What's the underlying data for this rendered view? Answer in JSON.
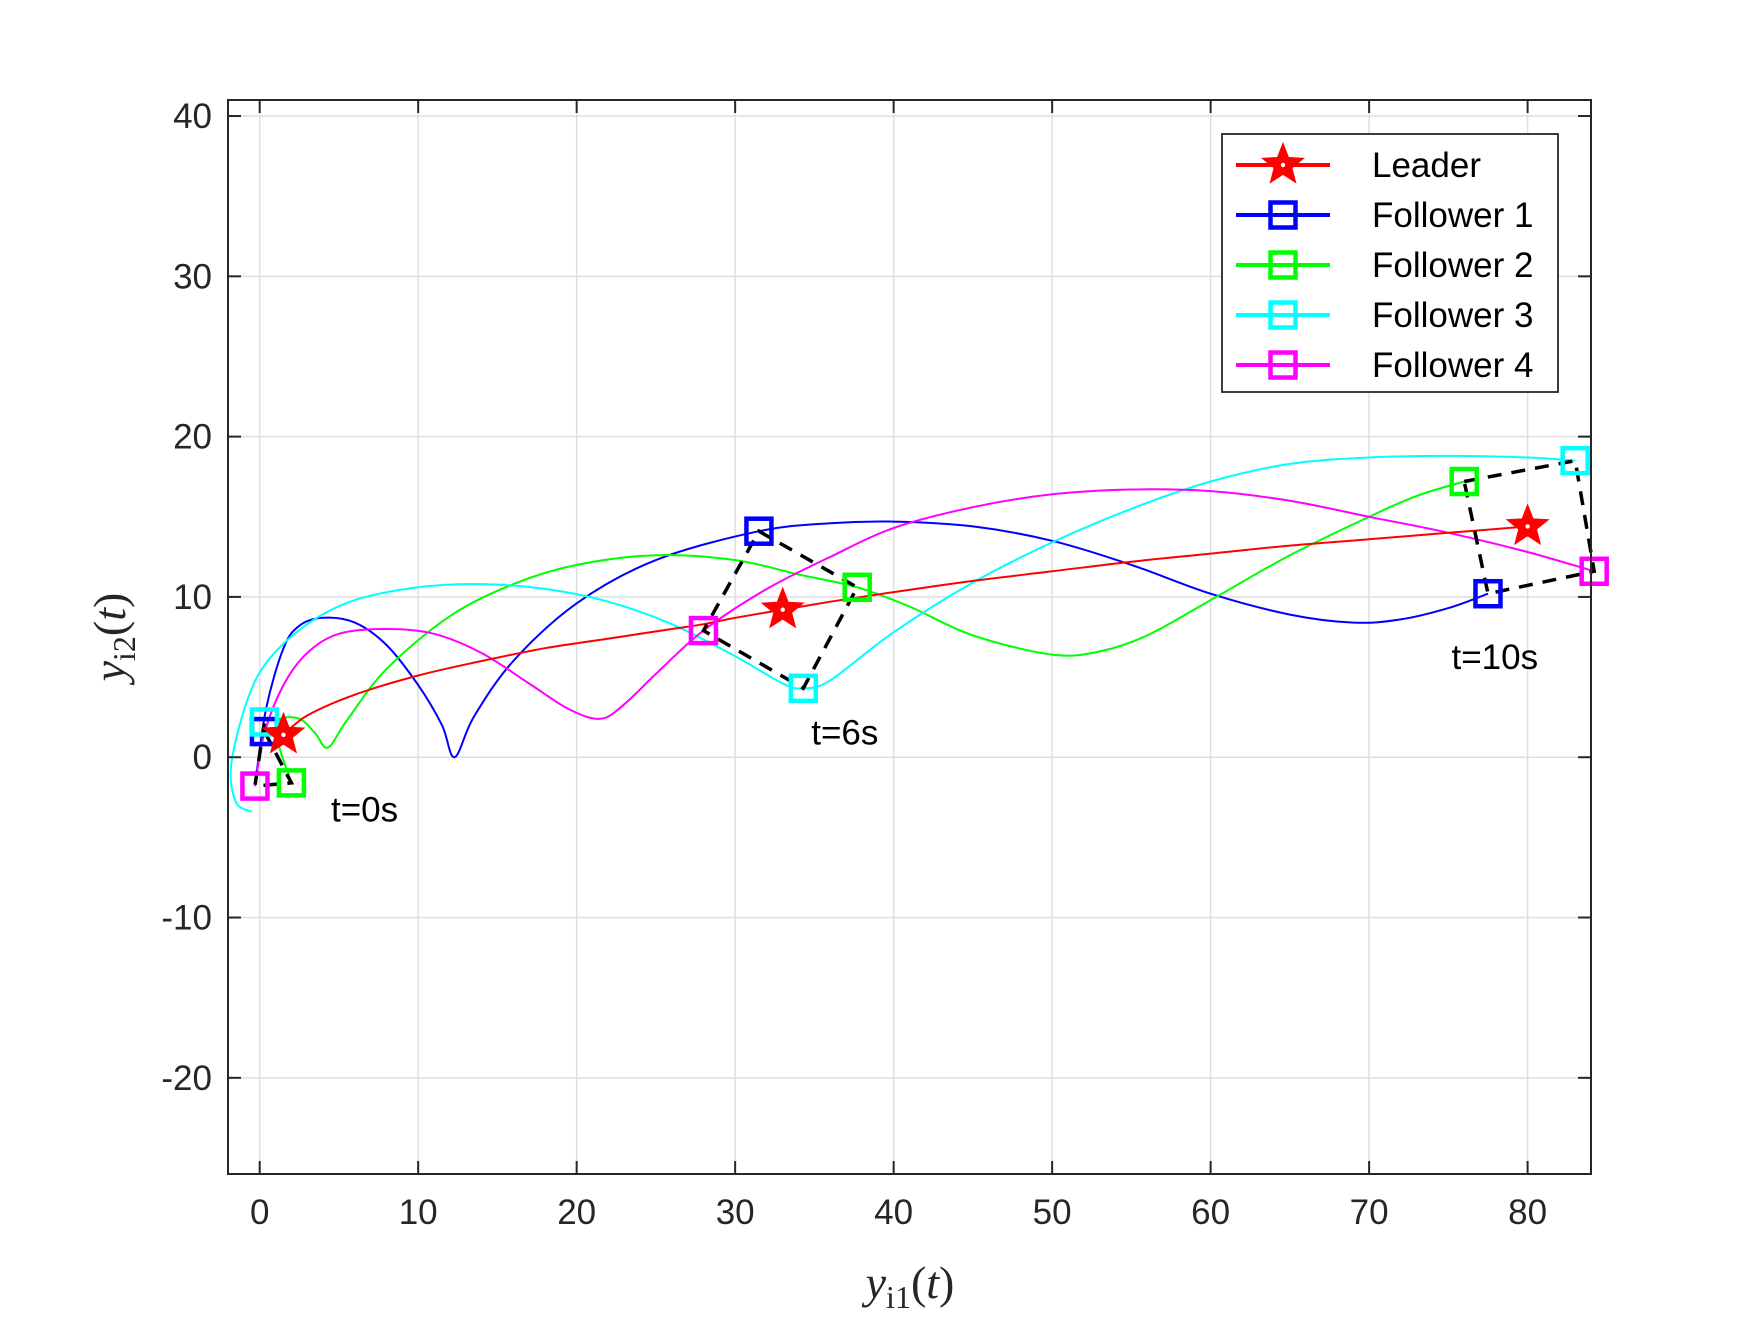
{
  "chart_data": {
    "type": "line",
    "xlabel": "y_{i1}(t)",
    "ylabel": "y_{i2}(t)",
    "xlim": [
      -2,
      84
    ],
    "ylim": [
      -26,
      41
    ],
    "grid": true,
    "xticks": [
      0,
      10,
      20,
      30,
      40,
      50,
      60,
      70,
      80
    ],
    "yticks": [
      -20,
      -10,
      0,
      10,
      20,
      30,
      40
    ],
    "xtick_labels": [
      "0",
      "10",
      "20",
      "30",
      "40",
      "50",
      "60",
      "70",
      "80"
    ],
    "ytick_labels": [
      "-20",
      "-10",
      "0",
      "10",
      "20",
      "30",
      "40"
    ],
    "legend_position": "top-right",
    "series": [
      {
        "name": "Leader",
        "color": "#ff0000",
        "marker": "star",
        "x": [
          1.5,
          3,
          6,
          10,
          14,
          18,
          22,
          26,
          28,
          30,
          33,
          36,
          40,
          45,
          50,
          55,
          60,
          65,
          70,
          75,
          80
        ],
        "y": [
          1.4,
          2.6,
          3.9,
          5.1,
          6.0,
          6.8,
          7.4,
          8.0,
          8.3,
          8.7,
          9.2,
          9.7,
          10.3,
          11.0,
          11.6,
          12.2,
          12.7,
          13.2,
          13.6,
          14.0,
          14.4
        ],
        "markers": [
          [
            1.5,
            1.4
          ],
          [
            33,
            9.2
          ],
          [
            80,
            14.4
          ]
        ]
      },
      {
        "name": "Follower 1",
        "color": "#0000ff",
        "marker": "square",
        "x": [
          -0.3,
          0.4,
          1.5,
          2.5,
          4,
          6,
          8,
          10,
          11.5,
          12.3,
          13.5,
          16,
          20,
          25,
          31.5,
          36,
          40,
          45,
          50,
          55,
          60,
          65,
          69,
          72,
          75,
          77.5
        ],
        "y": [
          -1.8,
          3,
          6.8,
          8.2,
          8.7,
          8.4,
          7,
          4.5,
          2,
          0,
          2.5,
          6,
          9.6,
          12.3,
          14.1,
          14.6,
          14.7,
          14.4,
          13.5,
          12,
          10.2,
          8.9,
          8.4,
          8.6,
          9.3,
          10.2
        ],
        "markers": [
          [
            0.3,
            1.6
          ],
          [
            31.5,
            14.1
          ],
          [
            77.5,
            10.2
          ]
        ]
      },
      {
        "name": "Follower 2",
        "color": "#00ff00",
        "marker": "square",
        "x": [
          2,
          1.2,
          1.2,
          2.5,
          3.5,
          4.3,
          5.5,
          8,
          12,
          16,
          20,
          25,
          30,
          34,
          37.7,
          41,
          45,
          50,
          53,
          56,
          60,
          65,
          70,
          73,
          76
        ],
        "y": [
          -1.6,
          0.8,
          2.3,
          2.4,
          1.5,
          0.6,
          2.3,
          5.5,
          8.8,
          10.8,
          12.0,
          12.6,
          12.3,
          11.4,
          10.6,
          9.4,
          7.6,
          6.4,
          6.6,
          7.6,
          9.8,
          12.6,
          15.0,
          16.3,
          17.2
        ],
        "markers": [
          [
            2,
            -1.6
          ],
          [
            37.7,
            10.6
          ],
          [
            76,
            17.2
          ]
        ]
      },
      {
        "name": "Follower 3",
        "color": "#00ffff",
        "marker": "square",
        "x": [
          -0.5,
          -1.5,
          -1.8,
          -0.8,
          0.5,
          3,
          6,
          10,
          14,
          18,
          22,
          26,
          30,
          33,
          34.3,
          36,
          40,
          45,
          50,
          55,
          60,
          65,
          70,
          75,
          80,
          83
        ],
        "y": [
          -3.4,
          -2.8,
          -0.5,
          3.5,
          6,
          8.3,
          9.8,
          10.6,
          10.8,
          10.5,
          9.7,
          8.3,
          6.3,
          4.6,
          4.3,
          4.8,
          7.8,
          10.9,
          13.4,
          15.5,
          17.2,
          18.3,
          18.7,
          18.8,
          18.7,
          18.5
        ],
        "markers": [
          [
            0.3,
            2.2
          ],
          [
            34.3,
            4.3
          ],
          [
            83,
            18.5
          ]
        ]
      },
      {
        "name": "Follower 4",
        "color": "#ff00ff",
        "marker": "square",
        "x": [
          -0.3,
          0.3,
          1.5,
          3,
          5,
          8,
          11,
          14,
          17,
          19.5,
          21.5,
          23,
          25,
          28,
          32,
          36,
          40,
          45,
          50,
          55,
          60,
          65,
          70,
          75,
          80,
          84.2
        ],
        "y": [
          -1.8,
          1.5,
          4.5,
          6.5,
          7.7,
          8.0,
          7.7,
          6.5,
          4.6,
          3.0,
          2.4,
          3.3,
          5.2,
          7.9,
          10.5,
          12.5,
          14.3,
          15.6,
          16.4,
          16.7,
          16.6,
          16.0,
          15.0,
          14.0,
          12.8,
          11.6
        ],
        "markers": [
          [
            -0.3,
            -1.8
          ],
          [
            28,
            7.9
          ],
          [
            84.2,
            11.6
          ]
        ]
      }
    ],
    "formations": [
      {
        "label": "t=0s",
        "points": [
          [
            0.3,
            1.6
          ],
          [
            2,
            -1.6
          ],
          [
            -0.3,
            -1.8
          ],
          [
            0.3,
            2.2
          ]
        ],
        "label_at": [
          4.5,
          -4
        ]
      },
      {
        "label": "t=6s",
        "points": [
          [
            31.5,
            14.1
          ],
          [
            37.7,
            10.6
          ],
          [
            34.3,
            4.3
          ],
          [
            28,
            7.9
          ]
        ],
        "label_at": [
          34.8,
          0.8
        ]
      },
      {
        "label": "t=10s",
        "points": [
          [
            76,
            17.2
          ],
          [
            83,
            18.5
          ],
          [
            84.2,
            11.6
          ],
          [
            77.5,
            10.2
          ]
        ],
        "label_at": [
          75.2,
          5.5
        ]
      }
    ]
  }
}
